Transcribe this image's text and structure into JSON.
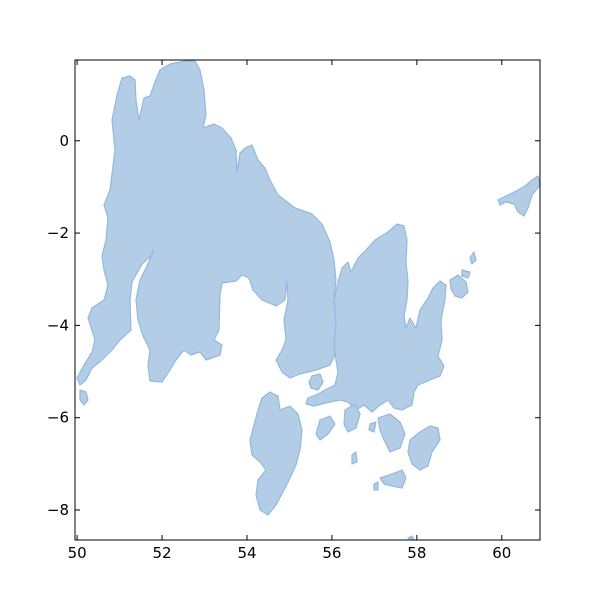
{
  "map": {
    "x_ticks": [
      "50",
      "52",
      "54",
      "56",
      "58",
      "60"
    ],
    "y_ticks": [
      "0",
      "−2",
      "−4",
      "−6",
      "−8"
    ],
    "x_range": [
      49.95,
      60.9
    ],
    "y_range": [
      -8.65,
      1.75
    ],
    "land_fill": "#b3cde6",
    "land_edge": "#94b8de"
  }
}
